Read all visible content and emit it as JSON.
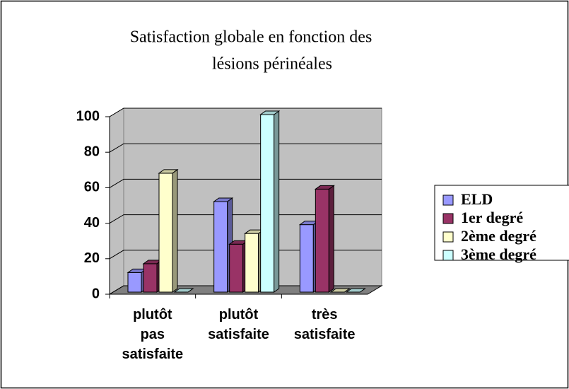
{
  "chart_data": {
    "type": "bar3d",
    "title": [
      "Satisfaction globale en fonction des",
      "lésions périnéales"
    ],
    "categories": [
      "plutôt pas satisfaite",
      "plutôt satisfaite",
      "très satisfaite"
    ],
    "series": [
      {
        "name": "ELD",
        "color": "#9999ff",
        "values": [
          11,
          51,
          38
        ]
      },
      {
        "name": "1er degré",
        "color": "#993366",
        "values": [
          16,
          27,
          58
        ]
      },
      {
        "name": "2ème degré",
        "color": "#ffffcc",
        "values": [
          67,
          33,
          0
        ]
      },
      {
        "name": "3ème degré",
        "color": "#ccffff",
        "values": [
          0,
          100,
          0
        ]
      }
    ],
    "ylim": [
      0,
      100
    ],
    "yticks": [
      0,
      20,
      40,
      60,
      80,
      100
    ],
    "grid": true,
    "legend": "right"
  }
}
